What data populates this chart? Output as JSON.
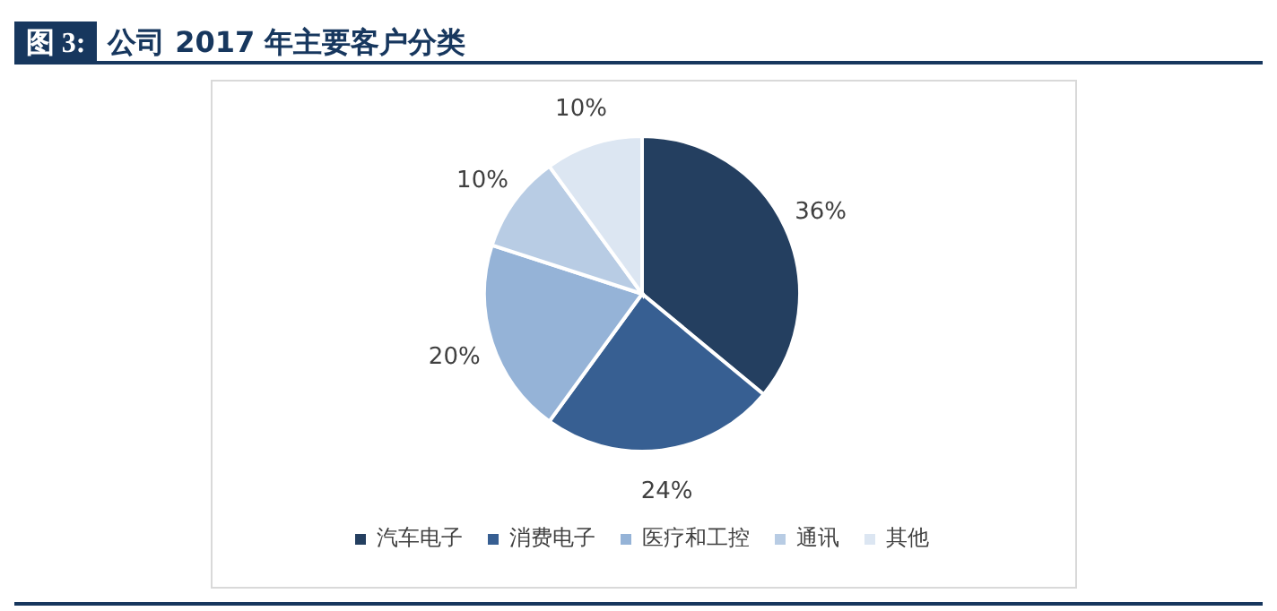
{
  "chart_data": {
    "type": "pie",
    "title": "图 3: 公司 2017 年主要客户分类",
    "categories": [
      "汽车电子",
      "消费电子",
      "医疗和工控",
      "通讯",
      "其他"
    ],
    "values": [
      36,
      24,
      20,
      10,
      10
    ],
    "value_labels": [
      "36%",
      "24%",
      "20%",
      "10%",
      "10%"
    ],
    "colors": [
      "#243f60",
      "#375f92",
      "#95b3d7",
      "#b8cce4",
      "#dce6f2"
    ],
    "legend": "bottom"
  }
}
